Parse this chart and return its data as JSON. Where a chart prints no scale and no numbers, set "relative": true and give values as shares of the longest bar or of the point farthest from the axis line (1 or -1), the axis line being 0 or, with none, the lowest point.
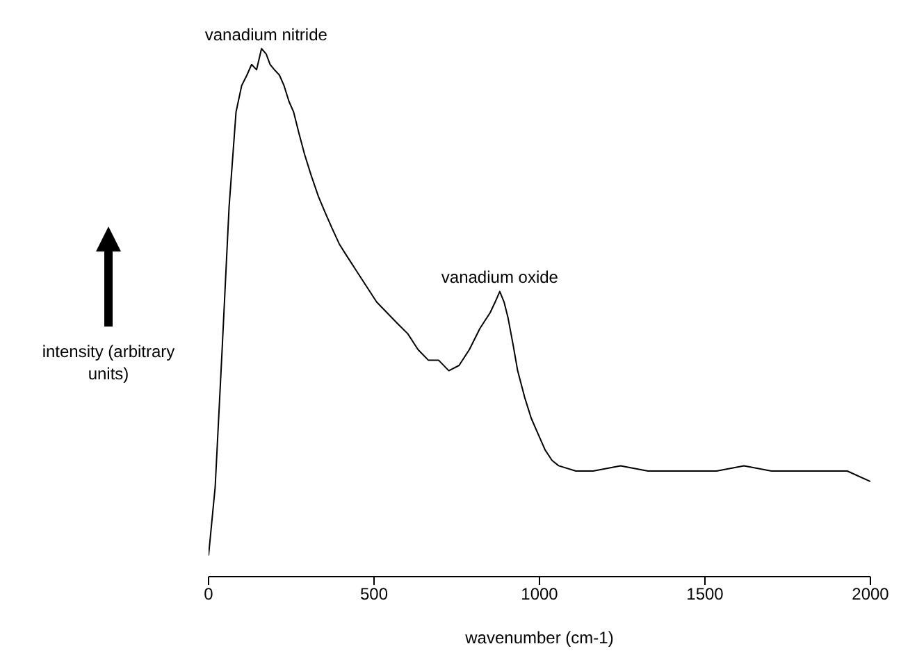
{
  "chart_data": {
    "type": "line",
    "xlabel": "wavenumber (cm-1)",
    "ylabel": "intensity (arbitrary units)",
    "relative": true,
    "xlim": [
      0,
      2000
    ],
    "xticks": [
      0,
      500,
      1000,
      1500,
      2000
    ],
    "marker": "none",
    "line_style": "solid",
    "annotations": [
      {
        "text": "vanadium nitride",
        "x": 174,
        "y": 0.99
      },
      {
        "text": "vanadium oxide",
        "x": 880,
        "y": 0.53
      }
    ],
    "series": [
      {
        "color": "#000000",
        "x": [
          0,
          20,
          41,
          62,
          83,
          100,
          116,
          130,
          145,
          160,
          174,
          186,
          199,
          214,
          228,
          243,
          257,
          273,
          290,
          310,
          332,
          352,
          373,
          395,
          415,
          446,
          477,
          508,
          539,
          570,
          602,
          633,
          664,
          695,
          726,
          757,
          788,
          820,
          851,
          866,
          880,
          893,
          905,
          920,
          934,
          955,
          975,
          996,
          1017,
          1038,
          1058,
          1110,
          1162,
          1245,
          1328,
          1430,
          1535,
          1618,
          1701,
          1784,
          1867,
          1930,
          2000
        ],
        "values": [
          0.04,
          0.17,
          0.43,
          0.7,
          0.88,
          0.93,
          0.95,
          0.97,
          0.96,
          1,
          0.99,
          0.97,
          0.96,
          0.95,
          0.93,
          0.9,
          0.88,
          0.84,
          0.8,
          0.76,
          0.72,
          0.69,
          0.66,
          0.63,
          0.61,
          0.58,
          0.55,
          0.52,
          0.5,
          0.48,
          0.46,
          0.43,
          0.41,
          0.41,
          0.39,
          0.4,
          0.43,
          0.47,
          0.5,
          0.52,
          0.54,
          0.52,
          0.49,
          0.44,
          0.39,
          0.34,
          0.3,
          0.27,
          0.24,
          0.22,
          0.21,
          0.2,
          0.2,
          0.21,
          0.2,
          0.2,
          0.2,
          0.21,
          0.2,
          0.2,
          0.2,
          0.2,
          0.18
        ]
      }
    ]
  }
}
